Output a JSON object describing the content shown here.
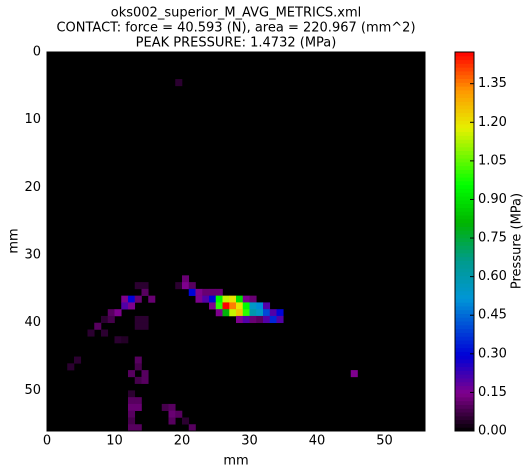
{
  "chart_data": {
    "type": "heatmap",
    "title": [
      "oks002_superior_M_AVG_METRICS.xml",
      "CONTACT: force = 40.593 (N), area = 220.967 (mm^2)",
      "PEAK PRESSURE: 1.4732 (MPa)"
    ],
    "x_label": "mm",
    "y_label": "mm",
    "xlim": [
      0,
      56
    ],
    "ylim": [
      56,
      0
    ],
    "xticks": [
      0,
      10,
      20,
      30,
      40,
      50
    ],
    "yticks": [
      0,
      10,
      20,
      30,
      40,
      50
    ],
    "colormap": "nipy_spectral",
    "colorbar_label": "Pressure (MPa)",
    "clim": [
      0,
      1.4732
    ],
    "cticks": [
      {
        "value": 0,
        "label": "0.00"
      },
      {
        "value": 0.15,
        "label": "0.15"
      },
      {
        "value": 0.3,
        "label": "0.30"
      },
      {
        "value": 0.45,
        "label": "0.45"
      },
      {
        "value": 0.6,
        "label": "0.60"
      },
      {
        "value": 0.75,
        "label": "0.75"
      },
      {
        "value": 0.9,
        "label": "0.90"
      },
      {
        "value": 1.05,
        "label": "1.05"
      },
      {
        "value": 1.2,
        "label": "1.20"
      },
      {
        "value": 1.35,
        "label": "1.35"
      }
    ],
    "cells": {
      "x": [
        19,
        20,
        19,
        20,
        21,
        13,
        14,
        14,
        21,
        22,
        23,
        24,
        25,
        11,
        12,
        13,
        15,
        22,
        23,
        24,
        25,
        26,
        27,
        28,
        29,
        30,
        11,
        12,
        24,
        25,
        26,
        27,
        28,
        29,
        30,
        31,
        32,
        9,
        10,
        25,
        26,
        27,
        28,
        29,
        30,
        31,
        32,
        33,
        34,
        8,
        9,
        13,
        14,
        28,
        29,
        30,
        31,
        32,
        33,
        34,
        7,
        13,
        14,
        6,
        8,
        10,
        11,
        4,
        13,
        3,
        13,
        12,
        14,
        45,
        13,
        14,
        12,
        12,
        13,
        12,
        13,
        17,
        18,
        12,
        18,
        19,
        12,
        18,
        20,
        12,
        13,
        21
      ],
      "y": [
        4,
        33,
        34,
        34,
        34,
        34,
        34,
        35,
        35,
        35,
        35,
        35,
        35,
        36,
        36,
        36,
        36,
        36,
        36,
        36,
        36,
        36,
        36,
        36,
        36,
        36,
        37,
        37,
        37,
        37,
        37,
        37,
        37,
        37,
        37,
        37,
        37,
        38,
        38,
        38,
        38,
        38,
        38,
        38,
        38,
        38,
        38,
        38,
        38,
        39,
        39,
        39,
        39,
        39,
        39,
        39,
        39,
        39,
        39,
        39,
        40,
        40,
        40,
        41,
        41,
        42,
        42,
        45,
        45,
        46,
        46,
        47,
        47,
        47,
        48,
        48,
        50,
        51,
        51,
        52,
        52,
        52,
        52,
        53,
        53,
        53,
        54,
        54,
        54,
        55,
        55,
        55
      ],
      "values": [
        0.05,
        0.12,
        0.05,
        0.15,
        0.1,
        0.05,
        0.05,
        0.1,
        0.3,
        0.15,
        0.12,
        0.12,
        0.12,
        0.15,
        0.3,
        0.12,
        0.12,
        0.15,
        0.2,
        0.3,
        0.95,
        1.15,
        1.2,
        0.9,
        0.15,
        0.12,
        0.2,
        0.15,
        0.15,
        1.0,
        1.4732,
        1.35,
        1.2,
        0.95,
        0.55,
        0.5,
        0.2,
        0.1,
        0.15,
        0.15,
        0.8,
        1.15,
        1.25,
        1.0,
        0.6,
        0.55,
        0.4,
        0.2,
        0.3,
        0.05,
        0.08,
        0.05,
        0.05,
        0.15,
        0.2,
        0.12,
        0.1,
        0.2,
        0.35,
        0.2,
        0.1,
        0.05,
        0.05,
        0.05,
        0.05,
        0.05,
        0.04,
        0.05,
        0.1,
        0.05,
        0.08,
        0.1,
        0.1,
        0.15,
        0.08,
        0.1,
        0.05,
        0.1,
        0.1,
        0.12,
        0.12,
        0.08,
        0.1,
        0.1,
        0.12,
        0.1,
        0.08,
        0.1,
        0.05,
        0.1,
        0.1,
        0.1
      ]
    }
  }
}
